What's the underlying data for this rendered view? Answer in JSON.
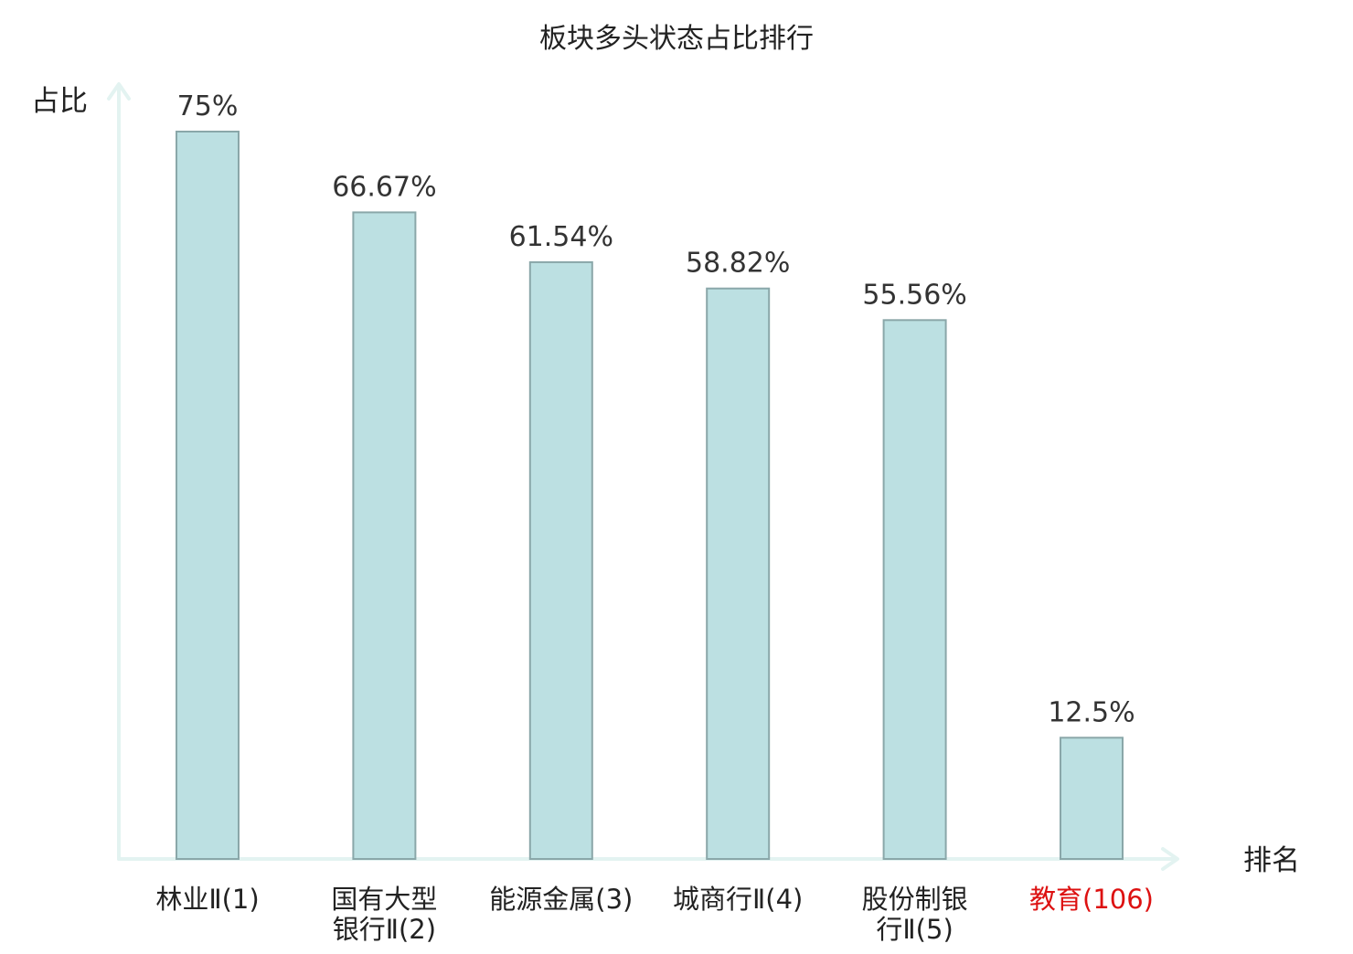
{
  "chart_data": {
    "type": "bar",
    "title": "板块多头状态占比排行",
    "ylabel": "占比",
    "xlabel": "排名",
    "ylim": [
      0,
      80
    ],
    "grid": false,
    "categories": [
      {
        "lines": [
          "林业Ⅱ(1)"
        ],
        "highlight": false
      },
      {
        "lines": [
          "国有大型",
          "银行Ⅱ(2)"
        ],
        "highlight": false
      },
      {
        "lines": [
          "能源金属(3)"
        ],
        "highlight": false
      },
      {
        "lines": [
          "城商行Ⅱ(4)"
        ],
        "highlight": false
      },
      {
        "lines": [
          "股份制银",
          "行Ⅱ(5)"
        ],
        "highlight": false
      },
      {
        "lines": [
          "教育(106)"
        ],
        "highlight": true
      }
    ],
    "values": [
      75,
      66.67,
      61.54,
      58.82,
      55.56,
      12.5
    ],
    "value_labels": [
      "75%",
      "66.67%",
      "61.54%",
      "58.82%",
      "55.56%",
      "12.5%"
    ],
    "colors": {
      "bar_fill": "#bce0e2",
      "bar_stroke": "#8aa7a9",
      "axis": "#e3f3f1",
      "label_normal": "#222222",
      "label_highlight": "#dd1111",
      "value_text": "#333333"
    }
  }
}
